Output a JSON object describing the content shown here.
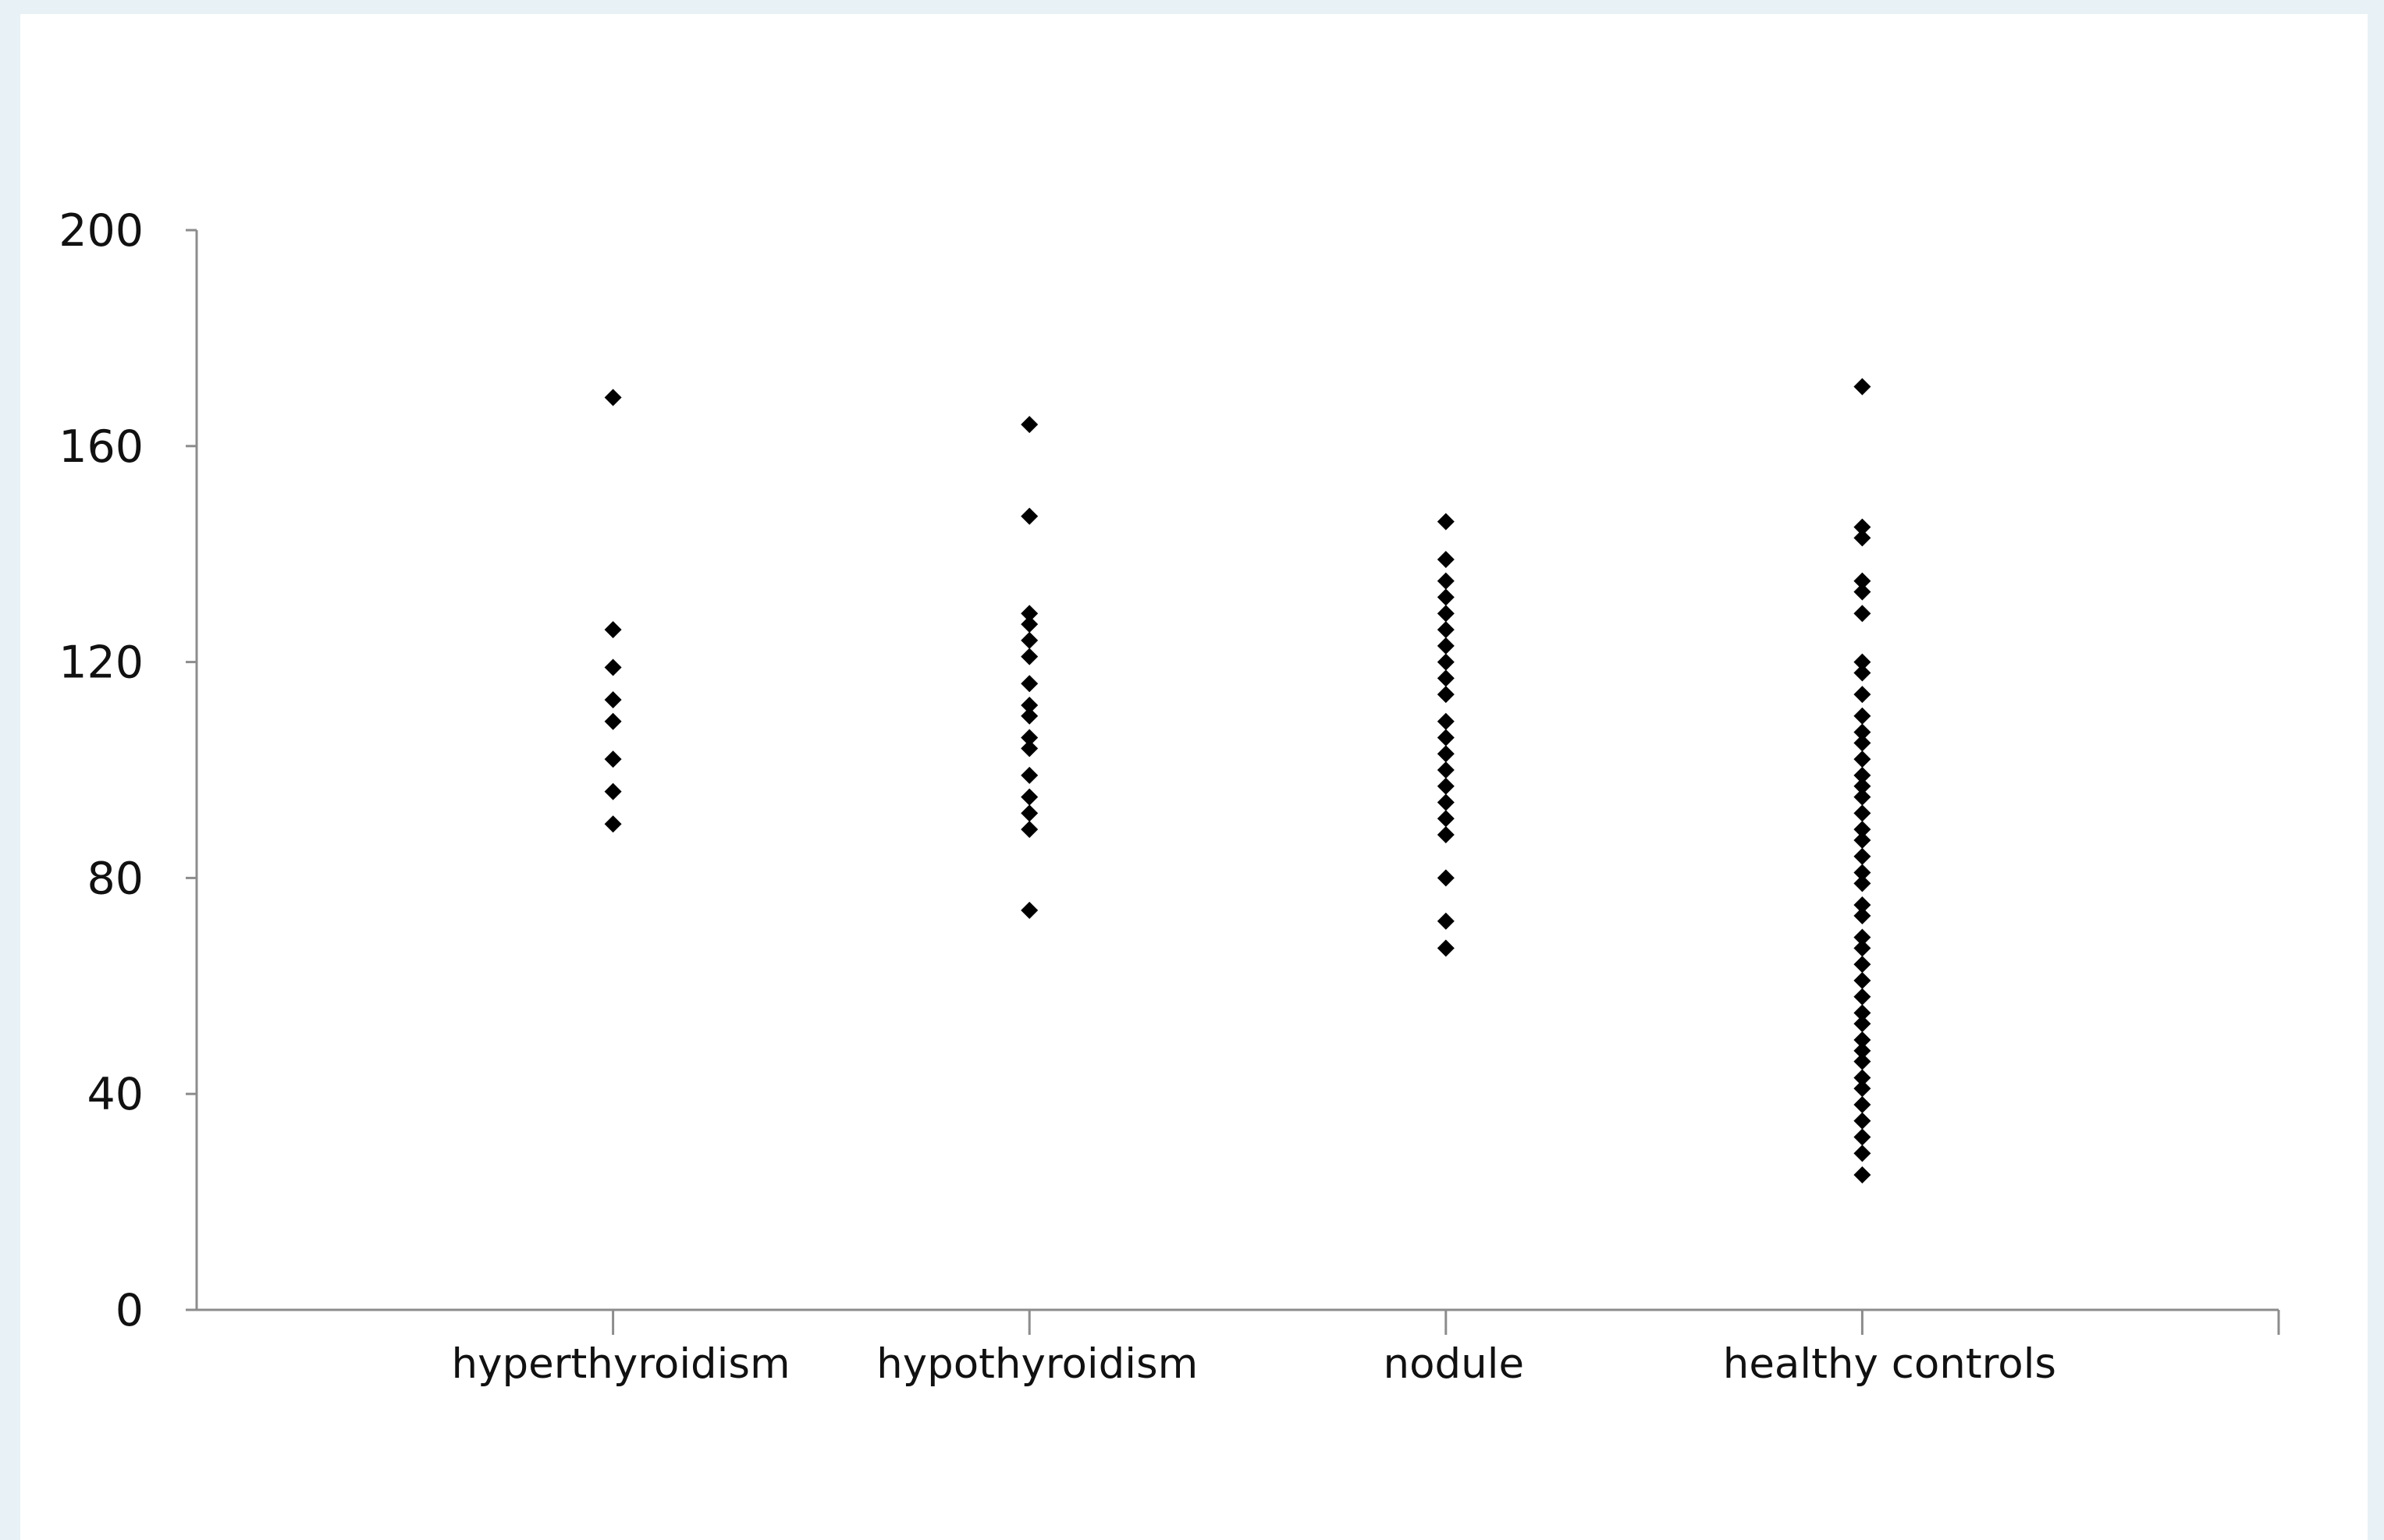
{
  "chart_data": {
    "type": "scatter",
    "title": "",
    "xlabel": "",
    "ylabel": "",
    "categories": [
      "hyperthyroidism",
      "hypothyroidism",
      "nodule",
      "healthy controls"
    ],
    "ylim": [
      0,
      200
    ],
    "yticks": [
      0,
      40,
      80,
      120,
      160,
      200
    ],
    "grid": false,
    "legend": "none",
    "marker": "diamond",
    "marker_color": "#000000",
    "series": [
      {
        "category": "hyperthyroidism",
        "values": [
          169,
          126,
          119,
          113,
          109,
          102,
          96,
          90
        ]
      },
      {
        "category": "hypothyroidism",
        "values": [
          164,
          147,
          129,
          127,
          124,
          121,
          116,
          112,
          110,
          106,
          104,
          99,
          95,
          92,
          89,
          74
        ]
      },
      {
        "category": "nodule",
        "values": [
          146,
          139,
          135,
          132,
          129,
          126,
          123,
          120,
          117,
          114,
          109,
          106,
          103,
          100,
          97,
          94,
          91,
          88,
          80,
          72,
          67
        ]
      },
      {
        "category": "healthy controls",
        "values": [
          171,
          145,
          143,
          135,
          133,
          129,
          120,
          118,
          114,
          110,
          107,
          105,
          102,
          99,
          97,
          95,
          92,
          89,
          87,
          84,
          81,
          79,
          75,
          73,
          69,
          67,
          64,
          61,
          58,
          55,
          53,
          50,
          48,
          46,
          43,
          41,
          38,
          35,
          32,
          29,
          25
        ]
      }
    ]
  }
}
